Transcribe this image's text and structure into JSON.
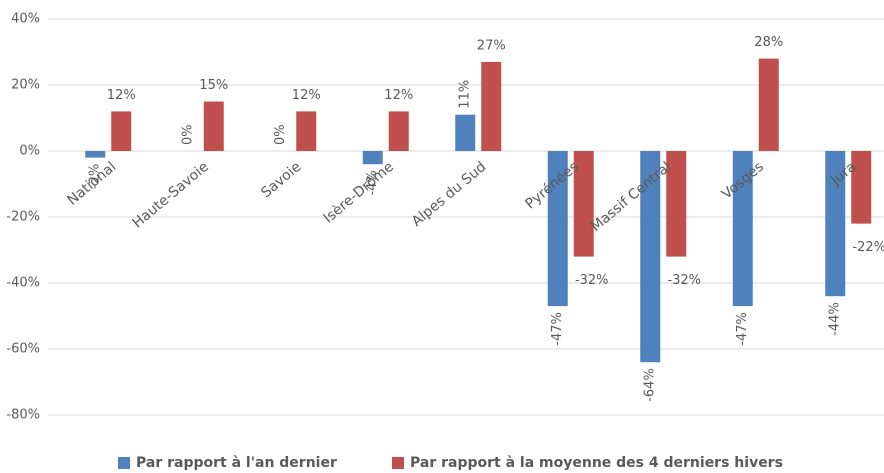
{
  "chart_data": {
    "type": "bar",
    "categories": [
      "National",
      "Haute-Savoie",
      "Savoie",
      "Isère-Drôme",
      "Alpes du Sud",
      "Pyrénées",
      "Massif Central",
      "Vosges",
      "Jura"
    ],
    "series": [
      {
        "name": "Par rapport à l'an dernier",
        "color": "#4f81bd",
        "values": [
          -2,
          0,
          0,
          -4,
          11,
          -47,
          -64,
          -47,
          -44
        ],
        "value_labels": [
          "-2%",
          "0%",
          "0%",
          "-4%",
          "11%",
          "-47%",
          "-64%",
          "-47%",
          "-44%"
        ]
      },
      {
        "name": "Par rapport à la moyenne des 4 derniers hivers",
        "color": "#c0504d",
        "values": [
          12,
          15,
          12,
          12,
          27,
          -32,
          -32,
          28,
          -22
        ],
        "value_labels": [
          "12%",
          "15%",
          "12%",
          "12%",
          "27%",
          "-32%",
          "-32%",
          "28%",
          "-22%"
        ]
      }
    ],
    "ylim": [
      -80,
      40
    ],
    "yticks": [
      {
        "value": -80,
        "label": "-80%"
      },
      {
        "value": -60,
        "label": "-60%"
      },
      {
        "value": -40,
        "label": "-40%"
      },
      {
        "value": -20,
        "label": "-20%"
      },
      {
        "value": 0,
        "label": "0%"
      },
      {
        "value": 20,
        "label": "20%"
      },
      {
        "value": 40,
        "label": "40%"
      }
    ],
    "grid": true,
    "legend": "bottom"
  }
}
